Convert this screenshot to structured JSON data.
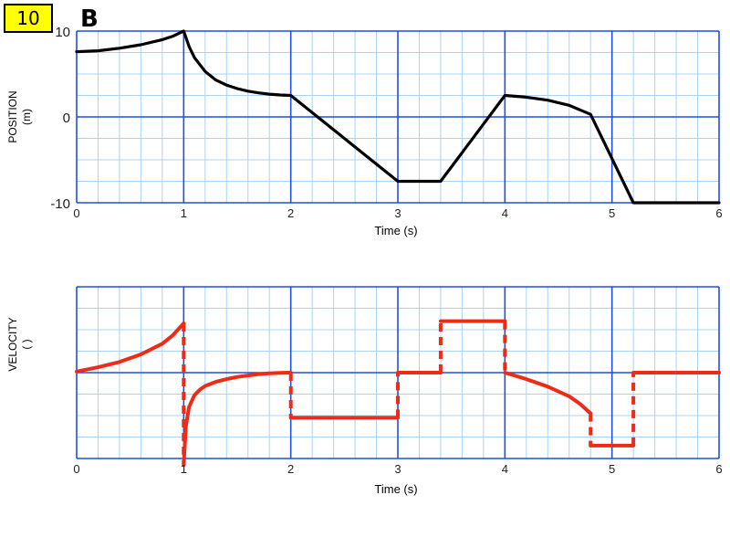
{
  "slide_number": "10",
  "panel_letter": "B",
  "colors": {
    "grid_minor": "#a9d3f5",
    "grid_major": "#1f4fe0",
    "position_line": "#000000",
    "velocity_line": "#ee2b17",
    "badge": "#ffff00"
  },
  "chart_data": [
    {
      "type": "line",
      "ylabel_line1": "POSITION",
      "ylabel_line2": "(m)",
      "xlabel": "Time (s)",
      "xlim": [
        0,
        6
      ],
      "ylim": [
        -10,
        10
      ],
      "x_ticks": [
        "0",
        "1",
        "2",
        "3",
        "4",
        "5",
        "6"
      ],
      "y_ticks": [
        {
          "value": 10,
          "label": "10"
        },
        {
          "value": 0,
          "label": "0"
        },
        {
          "value": -10,
          "label": "-10"
        }
      ],
      "grid": true,
      "x": [
        0,
        0.2,
        0.4,
        0.6,
        0.8,
        0.9,
        1.0,
        1.05,
        1.1,
        1.2,
        1.3,
        1.4,
        1.5,
        1.6,
        1.7,
        1.8,
        1.9,
        2.0,
        3.0,
        3.4,
        4.0,
        4.2,
        4.4,
        4.6,
        4.8,
        5.2,
        6.0
      ],
      "y": [
        7.6,
        7.7,
        8.0,
        8.4,
        9.0,
        9.4,
        10.0,
        8.2,
        6.9,
        5.3,
        4.3,
        3.7,
        3.3,
        3.0,
        2.8,
        2.65,
        2.55,
        2.5,
        -7.5,
        -7.5,
        2.5,
        2.3,
        1.95,
        1.35,
        0.3,
        -10.0,
        -10.0
      ]
    },
    {
      "type": "line",
      "ylabel_line1": "VELOCITY",
      "ylabel_line2": "(     )",
      "xlabel": "Time (s)",
      "xlim": [
        0,
        6
      ],
      "ylim": [
        -4,
        4
      ],
      "x_ticks": [
        "0",
        "1",
        "2",
        "3",
        "4",
        "5",
        "6"
      ],
      "grid": true,
      "segments": [
        {
          "style": "solid",
          "x": [
            0,
            0.2,
            0.4,
            0.6,
            0.8,
            0.9,
            1.0
          ],
          "y": [
            0.05,
            0.25,
            0.5,
            0.85,
            1.35,
            1.75,
            2.3
          ]
        },
        {
          "style": "dashed",
          "x": [
            1.0,
            1.0
          ],
          "y": [
            2.3,
            -4.3
          ]
        },
        {
          "style": "solid",
          "x": [
            1.0,
            1.02,
            1.05,
            1.1,
            1.15,
            1.2,
            1.3,
            1.4,
            1.5,
            1.6,
            1.7,
            1.8,
            1.9,
            2.0
          ],
          "y": [
            -4.3,
            -2.5,
            -1.6,
            -1.05,
            -0.8,
            -0.62,
            -0.43,
            -0.3,
            -0.2,
            -0.13,
            -0.07,
            -0.03,
            -0.01,
            0.0
          ]
        },
        {
          "style": "dashed",
          "x": [
            2.0,
            2.0
          ],
          "y": [
            0.0,
            -2.1
          ]
        },
        {
          "style": "solid",
          "x": [
            2.0,
            3.0
          ],
          "y": [
            -2.1,
            -2.1
          ]
        },
        {
          "style": "dashed",
          "x": [
            3.0,
            3.0
          ],
          "y": [
            -2.1,
            0.0
          ]
        },
        {
          "style": "solid",
          "x": [
            3.0,
            3.4
          ],
          "y": [
            0.0,
            0.0
          ]
        },
        {
          "style": "dashed",
          "x": [
            3.4,
            3.4
          ],
          "y": [
            0.0,
            2.4
          ]
        },
        {
          "style": "solid",
          "x": [
            3.4,
            4.0
          ],
          "y": [
            2.4,
            2.4
          ]
        },
        {
          "style": "dashed",
          "x": [
            4.0,
            4.0
          ],
          "y": [
            2.4,
            0.0
          ]
        },
        {
          "style": "solid",
          "x": [
            4.0,
            4.2,
            4.4,
            4.6,
            4.7,
            4.8
          ],
          "y": [
            0.0,
            -0.3,
            -0.65,
            -1.1,
            -1.45,
            -1.9
          ]
        },
        {
          "style": "dashed",
          "x": [
            4.8,
            4.8
          ],
          "y": [
            -1.9,
            -3.4
          ]
        },
        {
          "style": "solid",
          "x": [
            4.8,
            5.2
          ],
          "y": [
            -3.4,
            -3.4
          ]
        },
        {
          "style": "dashed",
          "x": [
            5.2,
            5.2
          ],
          "y": [
            -3.4,
            0.0
          ]
        },
        {
          "style": "solid",
          "x": [
            5.2,
            6.0
          ],
          "y": [
            0.0,
            0.0
          ]
        }
      ]
    }
  ]
}
